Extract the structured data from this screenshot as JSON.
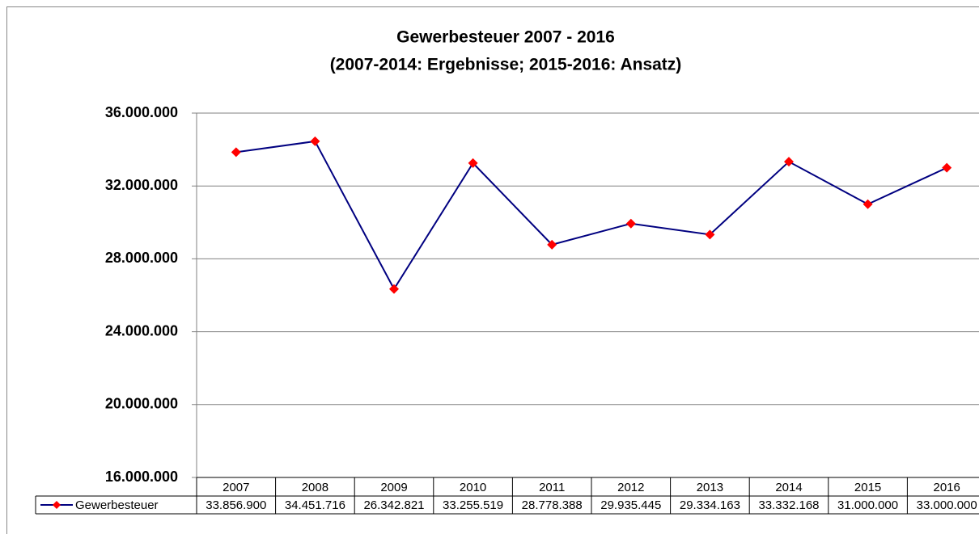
{
  "chart_data": {
    "type": "line",
    "title": "Gewerbesteuer 2007 - 2016",
    "subtitle": "(2007-2014: Ergebnisse; 2015-2016: Ansatz)",
    "categories": [
      "2007",
      "2008",
      "2009",
      "2010",
      "2011",
      "2012",
      "2013",
      "2014",
      "2015",
      "2016"
    ],
    "series": [
      {
        "name": "Gewerbesteuer",
        "color": "#000080",
        "marker_color": "#ff0000",
        "values": [
          33856900,
          34451716,
          26342821,
          33255519,
          28778388,
          29935445,
          29334163,
          33332168,
          31000000,
          33000000
        ],
        "value_labels": [
          "33.856.900",
          "34.451.716",
          "26.342.821",
          "33.255.519",
          "28.778.388",
          "29.935.445",
          "29.334.163",
          "33.332.168",
          "31.000.000",
          "33.000.000"
        ]
      }
    ],
    "ylim": [
      16000000,
      36000000
    ],
    "yticks": [
      {
        "value": 16000000,
        "label": "16.000.000"
      },
      {
        "value": 20000000,
        "label": "20.000.000"
      },
      {
        "value": 24000000,
        "label": "24.000.000"
      },
      {
        "value": 28000000,
        "label": "28.000.000"
      },
      {
        "value": 32000000,
        "label": "32.000.000"
      },
      {
        "value": 36000000,
        "label": "36.000.000"
      }
    ],
    "grid": true
  }
}
